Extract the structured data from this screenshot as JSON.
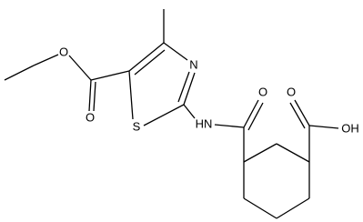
{
  "atoms": {
    "labels": [
      "O",
      "O",
      "N",
      "S",
      "HN",
      "O",
      "O",
      "OH"
    ]
  }
}
